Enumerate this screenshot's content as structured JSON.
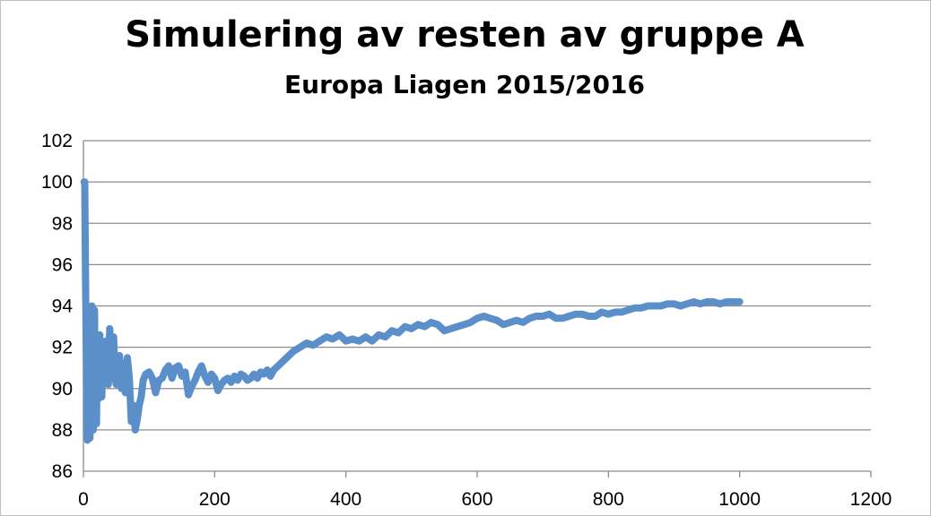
{
  "chart_data": {
    "type": "line",
    "title": "Simulering av resten av gruppe A",
    "subtitle": "Europa Liagen 2015/2016",
    "xlabel": "",
    "ylabel": "",
    "xlim": [
      0,
      1200
    ],
    "ylim": [
      86,
      102
    ],
    "xticks": [
      0,
      200,
      400,
      600,
      800,
      1000,
      1200
    ],
    "yticks": [
      86,
      88,
      90,
      92,
      94,
      96,
      98,
      100,
      102
    ],
    "grid": "horizontal",
    "legend": "none",
    "series": [
      {
        "color": "#5b8fc9",
        "x": [
          1,
          2,
          3,
          4,
          5,
          6,
          7,
          8,
          9,
          10,
          11,
          12,
          13,
          14,
          15,
          16,
          17,
          18,
          19,
          20,
          21,
          22,
          23,
          24,
          25,
          26,
          28,
          30,
          32,
          34,
          36,
          38,
          40,
          42,
          44,
          46,
          48,
          50,
          52,
          55,
          58,
          61,
          64,
          67,
          70,
          73,
          76,
          79,
          82,
          85,
          88,
          91,
          95,
          100,
          105,
          110,
          115,
          120,
          125,
          130,
          135,
          140,
          145,
          150,
          155,
          160,
          165,
          170,
          175,
          180,
          185,
          190,
          195,
          200,
          205,
          210,
          215,
          220,
          225,
          230,
          235,
          240,
          245,
          250,
          255,
          260,
          265,
          270,
          275,
          280,
          285,
          290,
          300,
          310,
          320,
          330,
          340,
          350,
          360,
          370,
          380,
          390,
          400,
          410,
          420,
          430,
          440,
          450,
          460,
          470,
          480,
          490,
          500,
          510,
          520,
          530,
          540,
          550,
          560,
          570,
          580,
          590,
          600,
          610,
          620,
          630,
          640,
          650,
          660,
          670,
          680,
          690,
          700,
          710,
          720,
          730,
          740,
          750,
          760,
          770,
          780,
          790,
          800,
          810,
          820,
          830,
          840,
          850,
          860,
          870,
          880,
          890,
          900,
          910,
          920,
          930,
          940,
          950,
          960,
          970,
          980,
          990,
          1000
        ],
        "y": [
          100,
          100,
          96,
          93,
          89,
          87.5,
          90,
          92,
          88,
          87.6,
          91,
          93,
          94,
          90,
          88,
          92,
          93.8,
          89,
          91,
          88.3,
          92,
          92.5,
          89.5,
          91,
          92.6,
          90,
          89.6,
          92.1,
          90.5,
          92.3,
          91,
          90.2,
          92.9,
          91.5,
          90.8,
          92.5,
          90.6,
          90.2,
          91.4,
          91.6,
          90,
          91.2,
          89.8,
          91.5,
          90.5,
          88.4,
          89.2,
          88,
          88.5,
          89.2,
          89.6,
          90.4,
          90.7,
          90.8,
          90.5,
          89.8,
          90.4,
          90.5,
          90.9,
          91.1,
          90.5,
          91,
          91.1,
          90.6,
          90.8,
          89.7,
          90.1,
          90.4,
          90.8,
          91.1,
          90.6,
          90.3,
          90.7,
          90.5,
          89.9,
          90.2,
          90.4,
          90.5,
          90.3,
          90.6,
          90.4,
          90.7,
          90.6,
          90.4,
          90.5,
          90.7,
          90.5,
          90.8,
          90.7,
          90.9,
          90.6,
          90.9,
          91.2,
          91.5,
          91.8,
          92.0,
          92.2,
          92.1,
          92.3,
          92.5,
          92.4,
          92.6,
          92.3,
          92.4,
          92.3,
          92.5,
          92.3,
          92.6,
          92.5,
          92.8,
          92.7,
          93.0,
          92.9,
          93.1,
          93.0,
          93.2,
          93.1,
          92.8,
          92.9,
          93.0,
          93.1,
          93.2,
          93.4,
          93.5,
          93.4,
          93.3,
          93.1,
          93.2,
          93.3,
          93.2,
          93.4,
          93.5,
          93.5,
          93.6,
          93.4,
          93.4,
          93.5,
          93.6,
          93.6,
          93.5,
          93.5,
          93.7,
          93.6,
          93.7,
          93.7,
          93.8,
          93.9,
          93.9,
          94.0,
          94.0,
          94.0,
          94.1,
          94.1,
          94.0,
          94.1,
          94.2,
          94.1,
          94.2,
          94.2,
          94.1,
          94.2,
          94.2,
          94.2
        ]
      }
    ]
  }
}
